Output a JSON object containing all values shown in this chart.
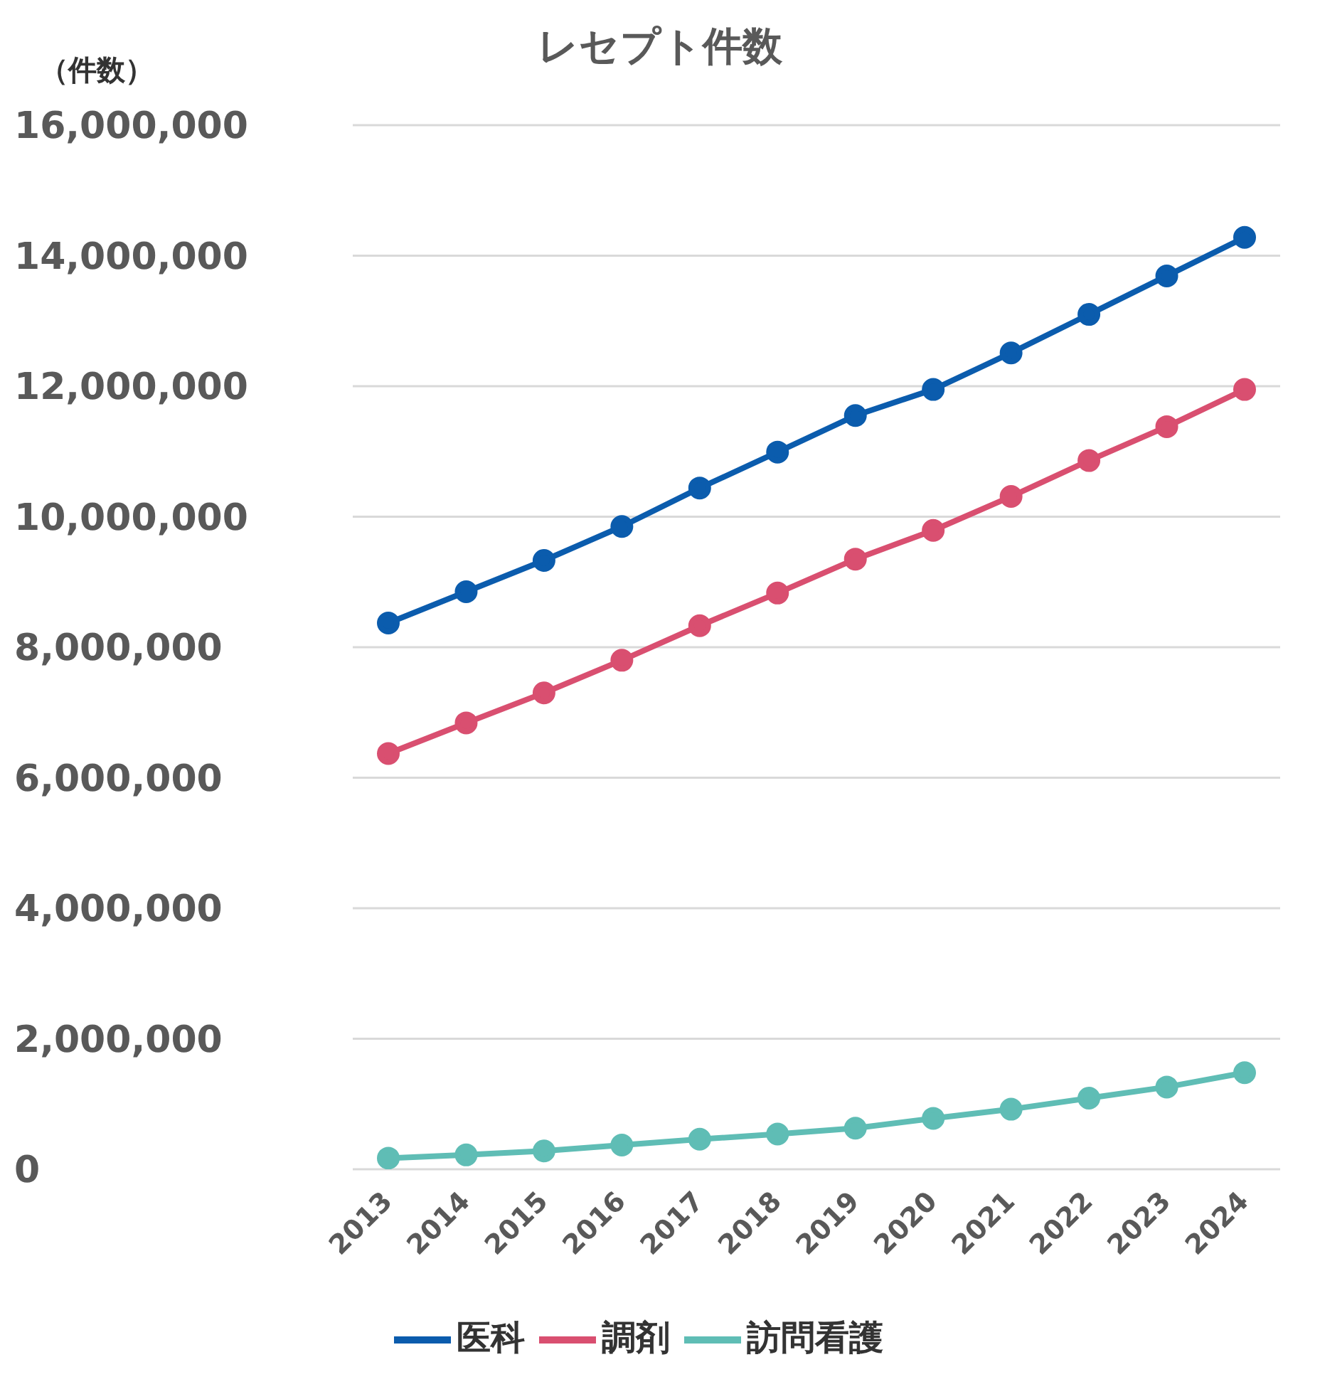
{
  "chart_data": {
    "type": "line",
    "title": "レセプト件数",
    "ylabel": "（件数）",
    "categories": [
      "2013",
      "2014",
      "2015",
      "2016",
      "2017",
      "2018",
      "2019",
      "2020",
      "2021",
      "2022",
      "2023",
      "2024"
    ],
    "series": [
      {
        "name": "医科",
        "color": "#0b5cad",
        "values": [
          8370000,
          8850000,
          9330000,
          9850000,
          10440000,
          10990000,
          11550000,
          11950000,
          12510000,
          13100000,
          13690000,
          14280000
        ]
      },
      {
        "name": "調剤",
        "color": "#d94f70",
        "values": [
          6370000,
          6840000,
          7300000,
          7800000,
          8330000,
          8830000,
          9350000,
          9790000,
          10310000,
          10860000,
          11380000,
          11950000
        ]
      },
      {
        "name": "訪問看護",
        "color": "#5fbdb5",
        "values": [
          170000,
          220000,
          280000,
          370000,
          460000,
          540000,
          630000,
          780000,
          920000,
          1090000,
          1260000,
          1480000
        ]
      }
    ],
    "ylim": [
      0,
      16000000
    ],
    "yticks": [
      0,
      {
        "value": 2000000,
        "label": "2,000,000"
      },
      {
        "value": 4000000,
        "label": "4,000,000"
      },
      {
        "value": 6000000,
        "label": "6,000,000"
      },
      {
        "value": 8000000,
        "label": "8,000,000"
      },
      {
        "value": 10000000,
        "label": "10,000,000"
      },
      {
        "value": 12000000,
        "label": "12,000,000"
      },
      {
        "value": 14000000,
        "label": "14,000,000"
      },
      {
        "value": 16000000,
        "label": "16,000,000"
      }
    ],
    "grid": "y",
    "legend": "bottom",
    "marker": "circle",
    "line_style": "solid"
  }
}
